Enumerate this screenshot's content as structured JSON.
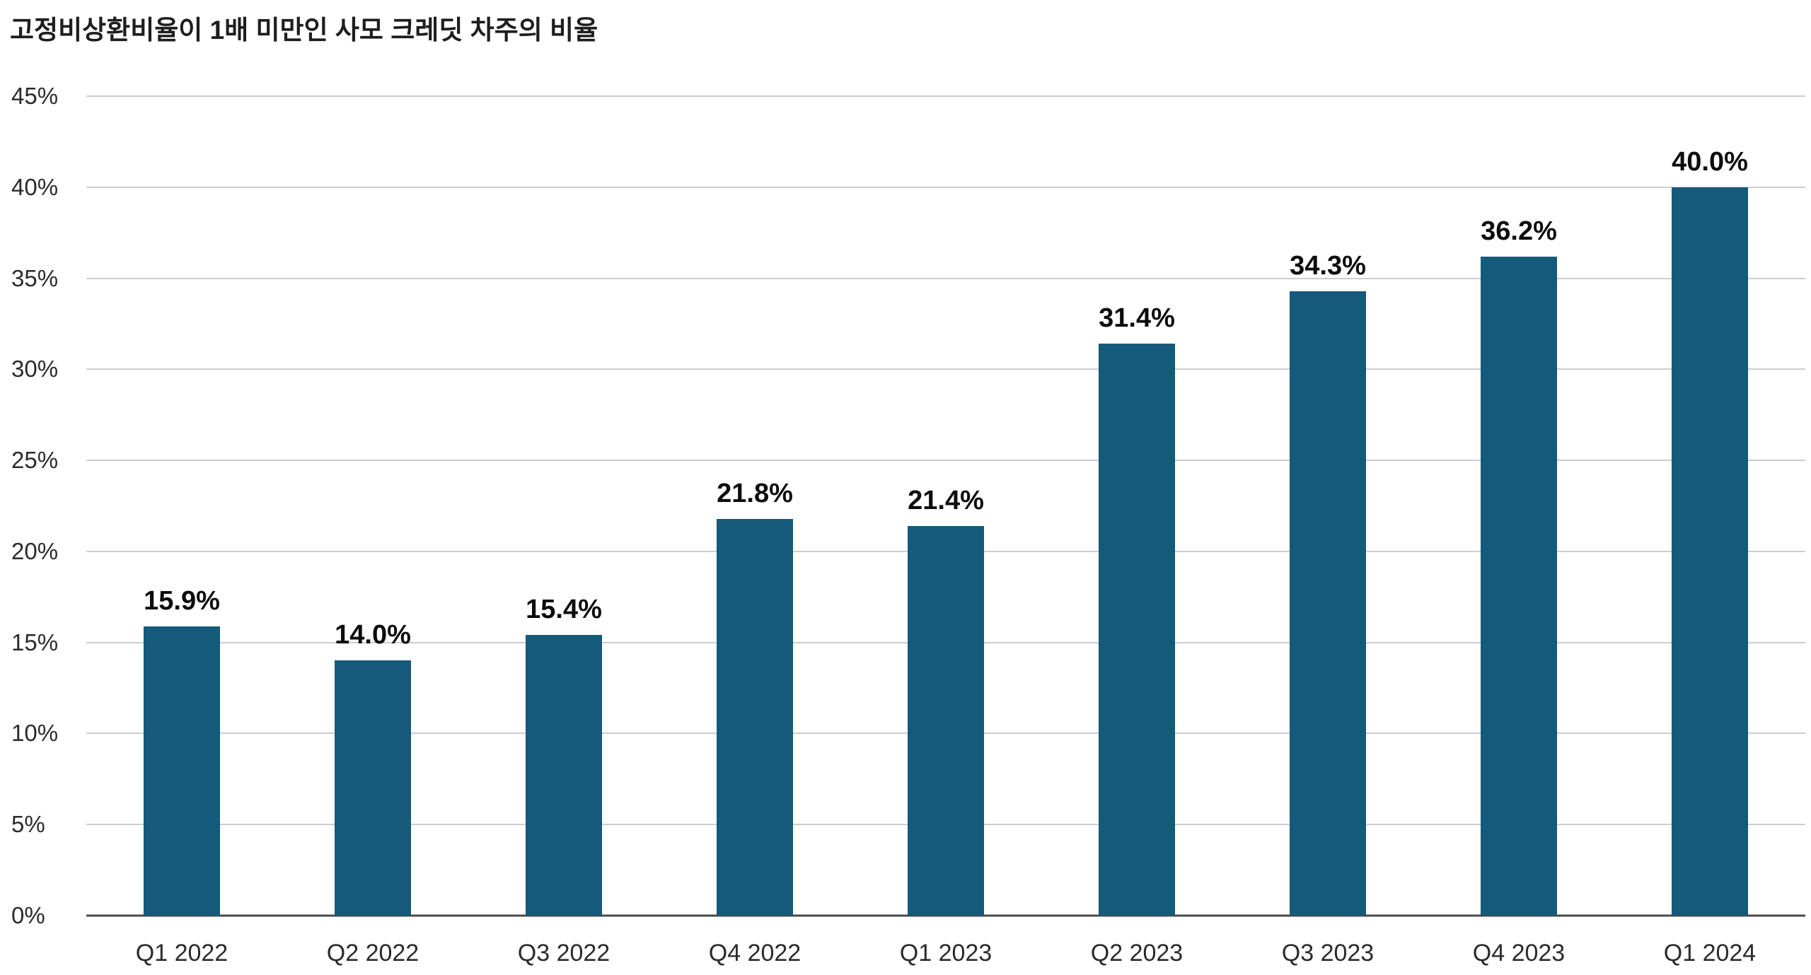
{
  "header": {
    "title": "고정비상환비율이 1배 미만인 사모 크레딧 차주의 비율"
  },
  "chart_data": {
    "type": "bar",
    "title": "고정비상환비율이 1배 미만인 사모 크레딧 차주의 비율",
    "categories": [
      "Q1 2022",
      "Q2 2022",
      "Q3 2022",
      "Q4 2022",
      "Q1 2023",
      "Q2 2023",
      "Q3 2023",
      "Q4 2023",
      "Q1 2024"
    ],
    "values": [
      15.9,
      14.0,
      15.4,
      21.8,
      21.4,
      31.4,
      34.3,
      36.2,
      40.0
    ],
    "value_labels": [
      "15.9%",
      "14.0%",
      "15.4%",
      "21.8%",
      "21.4%",
      "31.4%",
      "34.3%",
      "36.2%",
      "40.0%"
    ],
    "xlabel": "",
    "ylabel": "",
    "ylim": [
      0,
      45
    ],
    "yticks": [
      {
        "value": 45,
        "label": "45%"
      },
      {
        "value": 40,
        "label": "40%"
      },
      {
        "value": 35,
        "label": "35%"
      },
      {
        "value": 30,
        "label": "30%"
      },
      {
        "value": 25,
        "label": "25%"
      },
      {
        "value": 20,
        "label": "20%"
      },
      {
        "value": 15,
        "label": "15%"
      },
      {
        "value": 10,
        "label": "10%"
      },
      {
        "value": 5,
        "label": "5%"
      },
      {
        "value": 0,
        "label": "0%"
      }
    ],
    "grid": true,
    "legend": "none",
    "colors": {
      "bar": "#15597B",
      "gridline": "#9b9b9b",
      "baseline": "#4a4a4a",
      "value_label": "#0d0d0d",
      "tick_label": "#2b2b2b",
      "background": "#ffffff"
    }
  }
}
